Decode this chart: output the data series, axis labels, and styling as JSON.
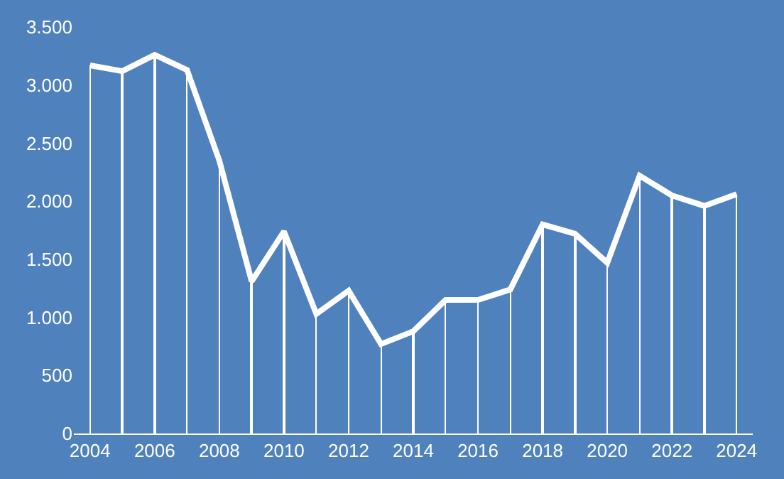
{
  "chart_data": {
    "type": "line",
    "x": [
      2004,
      2005,
      2006,
      2007,
      2008,
      2009,
      2010,
      2011,
      2012,
      2013,
      2014,
      2015,
      2016,
      2017,
      2018,
      2019,
      2020,
      2021,
      2022,
      2023,
      2024
    ],
    "series": [
      {
        "type": "bar",
        "color": "#ffffff",
        "values": [
          3170,
          3120,
          3260,
          3130,
          2350,
          1310,
          1740,
          1030,
          1230,
          770,
          880,
          1150,
          1150,
          1240,
          1800,
          1720,
          1470,
          2220,
          2050,
          1960,
          2060
        ]
      },
      {
        "color": "#ffffff",
        "values": [
          3170,
          3120,
          3260,
          3130,
          2350,
          1310,
          1740,
          1030,
          1230,
          770,
          880,
          1150,
          1150,
          1240,
          1800,
          1720,
          1470,
          2220,
          2050,
          1960,
          2060
        ]
      }
    ],
    "xlim": [
      2003.5,
      2024.5
    ],
    "xticks": [
      2004,
      2006,
      2008,
      2010,
      2012,
      2014,
      2016,
      2018,
      2020,
      2022,
      2024
    ],
    "ylim": [
      0,
      3500
    ],
    "yticks": [
      0,
      {
        "value": 500,
        "label": "500"
      },
      {
        "value": 1000,
        "label": "1.000"
      },
      {
        "value": 1500,
        "label": "1.500"
      },
      {
        "value": 2000,
        "label": "2.000"
      },
      {
        "value": 2500,
        "label": "2.500"
      },
      {
        "value": 3000,
        "label": "3.000"
      },
      {
        "value": 3500,
        "label": "3.500"
      }
    ],
    "grid": false,
    "marker": "none",
    "line_style": "solid"
  }
}
